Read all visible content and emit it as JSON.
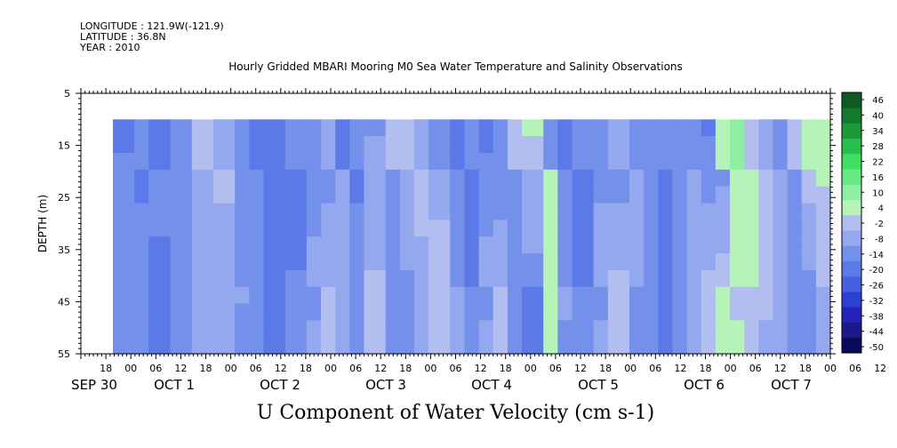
{
  "header": {
    "longitude": "LONGITUDE : 121.9W(-121.9)",
    "latitude": "LATITUDE : 36.8N",
    "year": "YEAR : 2010"
  },
  "chart_data": {
    "type": "heatmap",
    "title": "Hourly Gridded MBARI Mooring M0 Sea Water Temperature and Salinity Observations",
    "bottom_title": "U Component of Water Velocity (cm s-1)",
    "ylabel": "DEPTH (m)",
    "y_ticks": [
      5,
      15,
      25,
      35,
      45,
      55
    ],
    "ylim": [
      5,
      55
    ],
    "y_direction": "inverted (depth increases downward)",
    "data_depth_range": [
      10,
      55
    ],
    "x_start": "2010-09-30 12:00",
    "x_end": "2010-10-08 00:00",
    "x_hour_ticks": [
      "18",
      "00",
      "06",
      "12",
      "18",
      "00",
      "06",
      "12",
      "18",
      "00",
      "06",
      "12",
      "18",
      "00",
      "06",
      "12",
      "18",
      "00",
      "06",
      "12",
      "18",
      "00",
      "06",
      "12",
      "18",
      "00",
      "06",
      "12",
      "18",
      "00",
      "06",
      "12"
    ],
    "day_labels": [
      "SEP 30",
      "OCT  1",
      "OCT  2",
      "OCT  3",
      "OCT  4",
      "OCT  5",
      "OCT  6",
      "OCT  7"
    ],
    "colorbar": {
      "levels": [
        -50,
        -44,
        -38,
        -32,
        -26,
        -20,
        -14,
        -8,
        -2,
        4,
        10,
        16,
        22,
        28,
        34,
        40,
        46
      ],
      "labels": [
        "46",
        "40",
        "34",
        "28",
        "22",
        "16",
        "10",
        "4",
        "-2",
        "-8",
        "-14",
        "-20",
        "-26",
        "-32",
        "-38",
        "-44",
        "-50"
      ],
      "colors": [
        "#0a0a5c",
        "#1a1a8c",
        "#2323b8",
        "#2e3fd4",
        "#4560e0",
        "#5b7ae8",
        "#7590ea",
        "#93a8ee",
        "#b2beef",
        "#b6f3b8",
        "#8eeea2",
        "#66e883",
        "#3ee062",
        "#28bf4c",
        "#1c9a3a",
        "#147a2d",
        "#0f5a22"
      ]
    },
    "series": [
      {
        "time_fraction": [
          0.0,
          0.03,
          0.05,
          0.08,
          0.11,
          0.14,
          0.17,
          0.19,
          0.21,
          0.24,
          0.27,
          0.29,
          0.31,
          0.33,
          0.35,
          0.38,
          0.4,
          0.42,
          0.44,
          0.47,
          0.49,
          0.51,
          0.53,
          0.55,
          0.57,
          0.6,
          0.62,
          0.64,
          0.67,
          0.69,
          0.72,
          0.74,
          0.76,
          0.78,
          0.8,
          0.82,
          0.84,
          0.86,
          0.88,
          0.9,
          0.92,
          0.94,
          0.96,
          0.98,
          1.0
        ],
        "u_surface": [
          -10,
          -15,
          -12,
          -14,
          -9,
          0,
          -8,
          -12,
          -15,
          -18,
          -10,
          -13,
          -8,
          -16,
          -12,
          -9,
          0,
          4,
          -6,
          -14,
          -18,
          -10,
          -15,
          -12,
          2,
          5,
          -12,
          -18,
          -9,
          -14,
          -6,
          -10,
          -14,
          -12,
          -8,
          -14,
          -16,
          6,
          12,
          4,
          -6,
          -10,
          4,
          8,
          10
        ],
        "u_bottom": [
          -8,
          -12,
          -16,
          -10,
          -4,
          -6,
          -10,
          -14,
          -18,
          -12,
          -6,
          2,
          -6,
          -10,
          4,
          -8,
          -12,
          -8,
          3,
          -8,
          -14,
          -6,
          2,
          -12,
          -16,
          6,
          -10,
          -14,
          -6,
          4,
          -8,
          -14,
          -16,
          -10,
          -2,
          4,
          10,
          8,
          2,
          -4,
          -8,
          -10,
          -14,
          -6,
          4
        ]
      }
    ]
  }
}
